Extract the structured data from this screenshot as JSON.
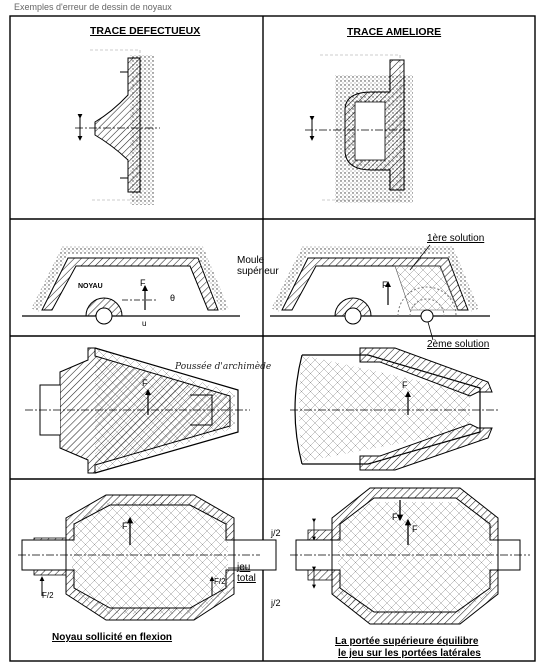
{
  "top_text": "Exemples d'erreur de dessin de noyaux",
  "titles": {
    "left": "TRACE DEFECTUEUX",
    "right": "TRACE AMELIORE"
  },
  "labels": {
    "moule_superieur_1": "Moule",
    "moule_superieur_2": "supérieur",
    "noyau": "NOYAU",
    "sol1": "1ère solution",
    "sol2": "2ème solution",
    "poussee": "Poussée d'archimède",
    "jeu_1": "jeu",
    "jeu_2": "total",
    "j2_top": "j/2",
    "j2_bottom": "j/2",
    "f_vec": "F",
    "f_half_left": "F/2",
    "f_half_right": "F/2",
    "p_sym": "P",
    "theta": "θ",
    "u_sym": "u"
  },
  "captions": {
    "bottom_left": "Noyau sollicité en flexion",
    "bottom_right_1": "La portée supérieure équilibre",
    "bottom_right_2": "le jeu sur les portées latérales"
  },
  "colors": {
    "ink": "#000000",
    "hatch": "#333333",
    "paper": "#ffffff"
  }
}
